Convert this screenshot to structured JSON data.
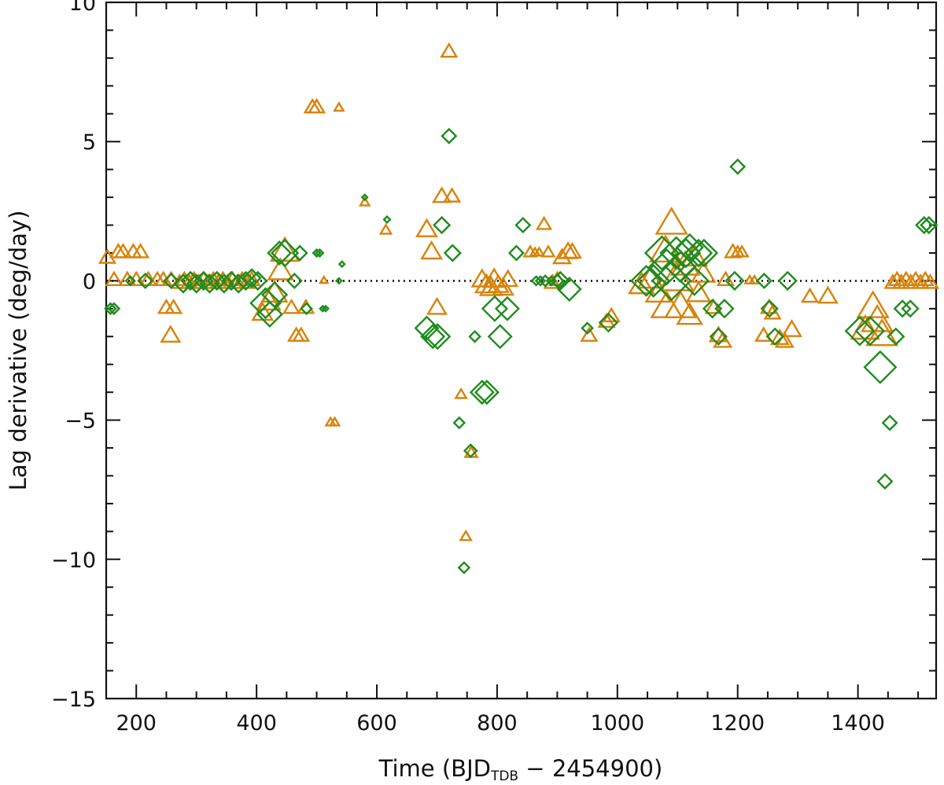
{
  "chart_data": {
    "type": "scatter",
    "title": "",
    "xlabel_parts": [
      "Time (BJD",
      "TDB",
      " − 2454900)"
    ],
    "ylabel": "Lag derivative (deg/day)",
    "xlim": [
      150,
      1530
    ],
    "ylim": [
      -15,
      10
    ],
    "x_ticks": [
      200,
      400,
      600,
      800,
      1000,
      1200,
      1400
    ],
    "x_tick_labels": [
      "200",
      "400",
      "600",
      "800",
      "1000",
      "1200",
      "1400"
    ],
    "y_ticks": [
      -15,
      -10,
      -5,
      0,
      5,
      10
    ],
    "y_tick_labels": [
      "−15",
      "−10",
      "−5",
      "0",
      "5",
      "10"
    ],
    "reference_line": 0,
    "series": [
      {
        "name": "triangles",
        "marker": "triangle",
        "color": "#D9820A",
        "points": [
          [
            152,
            0.8,
            1
          ],
          [
            170,
            1.0,
            1
          ],
          [
            178,
            1.0,
            1
          ],
          [
            195,
            1.0,
            1
          ],
          [
            207,
            1.0,
            1
          ],
          [
            163,
            0.0,
            1
          ],
          [
            185,
            0.0,
            1
          ],
          [
            200,
            0.0,
            1
          ],
          [
            220,
            0.0,
            1
          ],
          [
            235,
            0.0,
            1
          ],
          [
            245,
            0.0,
            1
          ],
          [
            258,
            0.0,
            1
          ],
          [
            250,
            -1.0,
            1
          ],
          [
            262,
            -1.0,
            1
          ],
          [
            257,
            -2.0,
            1.2
          ],
          [
            272,
            -0.1,
            1
          ],
          [
            280,
            0.0,
            1
          ],
          [
            288,
            -0.1,
            1
          ],
          [
            296,
            0.0,
            1
          ],
          [
            304,
            -0.1,
            1
          ],
          [
            312,
            0.0,
            1
          ],
          [
            320,
            -0.1,
            1
          ],
          [
            328,
            0.0,
            1
          ],
          [
            336,
            -0.1,
            1
          ],
          [
            344,
            0.0,
            1
          ],
          [
            352,
            -0.1,
            1
          ],
          [
            360,
            0.0,
            1
          ],
          [
            368,
            -0.1,
            1
          ],
          [
            376,
            0.0,
            1
          ],
          [
            384,
            -0.1,
            1
          ],
          [
            392,
            0.0,
            1
          ],
          [
            410,
            -1.2,
            1.3
          ],
          [
            420,
            -0.8,
            1.5
          ],
          [
            430,
            -0.5,
            1.6
          ],
          [
            440,
            0.3,
            1.6
          ],
          [
            447,
            1.0,
            1.8
          ],
          [
            458,
            -1.0,
            1
          ],
          [
            466,
            -2.0,
            1
          ],
          [
            474,
            -2.0,
            1
          ],
          [
            482,
            -1.0,
            1
          ],
          [
            493,
            6.2,
            1
          ],
          [
            500,
            6.2,
            1
          ],
          [
            537,
            6.2,
            0.6
          ],
          [
            512,
            0.0,
            0.5
          ],
          [
            523,
            -5.1,
            0.6
          ],
          [
            530,
            -5.1,
            0.6
          ],
          [
            580,
            2.8,
            0.6
          ],
          [
            615,
            1.8,
            0.7
          ],
          [
            683,
            1.8,
            1.3
          ],
          [
            691,
            1.0,
            1.3
          ],
          [
            700,
            -1.0,
            1.2
          ],
          [
            708,
            3.0,
            1.1
          ],
          [
            725,
            3.0,
            1
          ],
          [
            720,
            8.2,
            1
          ],
          [
            740,
            -4.1,
            0.7
          ],
          [
            748,
            -9.2,
            0.7
          ],
          [
            757,
            -6.2,
            0.8
          ],
          [
            775,
            0.0,
            1.3
          ],
          [
            782,
            -0.2,
            1.4
          ],
          [
            790,
            -0.3,
            1.4
          ],
          [
            795,
            0.0,
            1.4
          ],
          [
            802,
            -0.2,
            1.3
          ],
          [
            810,
            -0.3,
            1.3
          ],
          [
            818,
            0.0,
            1.2
          ],
          [
            855,
            1.0,
            0.8
          ],
          [
            863,
            1.0,
            0.6
          ],
          [
            870,
            1.0,
            0.6
          ],
          [
            878,
            2.0,
            0.9
          ],
          [
            885,
            1.0,
            0.8
          ],
          [
            892,
            -0.1,
            1
          ],
          [
            900,
            0.0,
            1
          ],
          [
            908,
            0.8,
            1.1
          ],
          [
            918,
            1.0,
            1.2
          ],
          [
            925,
            1.0,
            1.1
          ],
          [
            953,
            -2.0,
            1
          ],
          [
            982,
            -1.5,
            1
          ],
          [
            990,
            -1.3,
            1
          ],
          [
            1040,
            -0.2,
            1.6
          ],
          [
            1055,
            0.0,
            1.6
          ],
          [
            1068,
            -0.5,
            1.6
          ],
          [
            1080,
            1.0,
            2.0
          ],
          [
            1082,
            -1.0,
            2.0
          ],
          [
            1090,
            2.0,
            2.0
          ],
          [
            1098,
            0.0,
            2.2
          ],
          [
            1105,
            -1.0,
            2.0
          ],
          [
            1113,
            0.5,
            1.8
          ],
          [
            1120,
            -1.3,
            1.6
          ],
          [
            1128,
            0.8,
            1.6
          ],
          [
            1135,
            -0.5,
            1.5
          ],
          [
            1143,
            0.2,
            1.5
          ],
          [
            1160,
            -1.0,
            1
          ],
          [
            1168,
            -2.0,
            1.1
          ],
          [
            1175,
            -2.2,
            1.1
          ],
          [
            1180,
            0.0,
            1
          ],
          [
            1192,
            1.0,
            1
          ],
          [
            1200,
            1.0,
            0.8
          ],
          [
            1207,
            1.0,
            0.8
          ],
          [
            1220,
            0.0,
            0.6
          ],
          [
            1228,
            0.0,
            0.6
          ],
          [
            1243,
            -2.0,
            1
          ],
          [
            1252,
            -1.0,
            1
          ],
          [
            1258,
            -1.2,
            1
          ],
          [
            1270,
            -2.1,
            1.1
          ],
          [
            1278,
            -2.2,
            1.1
          ],
          [
            1290,
            -1.8,
            1.2
          ],
          [
            1320,
            -0.6,
            1
          ],
          [
            1350,
            -0.6,
            1.2
          ],
          [
            1412,
            -1.8,
            1.8
          ],
          [
            1425,
            -1.0,
            2.0
          ],
          [
            1432,
            -1.5,
            2.0
          ],
          [
            1440,
            -2.0,
            2.0
          ],
          [
            1458,
            -0.1,
            1
          ],
          [
            1465,
            0.0,
            1
          ],
          [
            1472,
            -0.1,
            1
          ],
          [
            1480,
            0.0,
            1
          ],
          [
            1488,
            -0.1,
            1
          ],
          [
            1496,
            0.0,
            1
          ],
          [
            1504,
            -0.1,
            1
          ],
          [
            1512,
            0.0,
            1
          ],
          [
            1520,
            -0.1,
            1
          ]
        ]
      },
      {
        "name": "diamonds",
        "marker": "diamond",
        "color": "#1E8C1E",
        "points": [
          [
            157,
            -1.0,
            0.6
          ],
          [
            163,
            -1.0,
            0.6
          ],
          [
            190,
            0.0,
            0.5
          ],
          [
            215,
            0.0,
            0.8
          ],
          [
            258,
            0.0,
            0.8
          ],
          [
            278,
            -0.1,
            1
          ],
          [
            290,
            0.0,
            1
          ],
          [
            300,
            -0.1,
            1
          ],
          [
            312,
            0.0,
            1
          ],
          [
            322,
            -0.1,
            1
          ],
          [
            334,
            0.0,
            1
          ],
          [
            346,
            -0.1,
            1
          ],
          [
            358,
            0.0,
            1
          ],
          [
            370,
            -0.1,
            1
          ],
          [
            382,
            0.0,
            1
          ],
          [
            392,
            0.1,
            1
          ],
          [
            402,
            0.0,
            1
          ],
          [
            415,
            -0.8,
            1.7
          ],
          [
            422,
            -1.2,
            1.4
          ],
          [
            430,
            -0.5,
            1.4
          ],
          [
            438,
            1.0,
            1.3
          ],
          [
            447,
            1.0,
            1.5
          ],
          [
            463,
            0.0,
            0.8
          ],
          [
            472,
            1.0,
            0.8
          ],
          [
            483,
            -1.0,
            0.6
          ],
          [
            500,
            1.0,
            0.4
          ],
          [
            505,
            1.0,
            0.4
          ],
          [
            510,
            -1.0,
            0.3
          ],
          [
            515,
            -1.0,
            0.3
          ],
          [
            542,
            0.6,
            0.3
          ],
          [
            580,
            3.0,
            0.3
          ],
          [
            617,
            2.2,
            0.35
          ],
          [
            537,
            0.0,
            0.3
          ],
          [
            683,
            -1.7,
            1.3
          ],
          [
            693,
            -2.0,
            1.3
          ],
          [
            701,
            -2.0,
            1.4
          ],
          [
            708,
            2.0,
            0.9
          ],
          [
            720,
            5.2,
            0.8
          ],
          [
            726,
            1.0,
            0.9
          ],
          [
            737,
            -5.1,
            0.6
          ],
          [
            745,
            -10.3,
            0.6
          ],
          [
            756,
            -6.1,
            0.7
          ],
          [
            763,
            -2.0,
            0.6
          ],
          [
            775,
            -4.0,
            1.3
          ],
          [
            783,
            -4.0,
            1.3
          ],
          [
            796,
            -1.0,
            1.4
          ],
          [
            805,
            -2.0,
            1.3
          ],
          [
            817,
            -1.0,
            1.3
          ],
          [
            832,
            1.0,
            0.8
          ],
          [
            843,
            2.0,
            0.8
          ],
          [
            865,
            0.0,
            0.5
          ],
          [
            872,
            0.0,
            0.5
          ],
          [
            880,
            0.0,
            0.6
          ],
          [
            890,
            0.0,
            0.5
          ],
          [
            900,
            0.0,
            0.7
          ],
          [
            905,
            0.0,
            1
          ],
          [
            920,
            -0.3,
            1.3
          ],
          [
            950,
            -1.7,
            0.6
          ],
          [
            985,
            -1.5,
            1
          ],
          [
            1048,
            0.0,
            1.7
          ],
          [
            1060,
            0.0,
            1.8
          ],
          [
            1074,
            1.0,
            1.9
          ],
          [
            1082,
            0.5,
            2.0
          ],
          [
            1090,
            0.0,
            2.2
          ],
          [
            1098,
            1.0,
            1.8
          ],
          [
            1105,
            0.5,
            1.7
          ],
          [
            1114,
            1.0,
            1.6
          ],
          [
            1120,
            1.2,
            1.5
          ],
          [
            1128,
            0.0,
            1.6
          ],
          [
            1135,
            1.0,
            1.5
          ],
          [
            1144,
            1.0,
            1.5
          ],
          [
            1158,
            -1.0,
            1
          ],
          [
            1168,
            -2.0,
            0.9
          ],
          [
            1178,
            -1.0,
            1
          ],
          [
            1195,
            0.0,
            1
          ],
          [
            1200,
            4.1,
            0.8
          ],
          [
            1244,
            0.0,
            0.8
          ],
          [
            1253,
            -1.0,
            0.9
          ],
          [
            1262,
            -2.0,
            0.9
          ],
          [
            1283,
            0.0,
            1
          ],
          [
            1403,
            -1.8,
            1.6
          ],
          [
            1420,
            -1.8,
            1.6
          ],
          [
            1437,
            -3.1,
            1.8
          ],
          [
            1453,
            -5.1,
            0.8
          ],
          [
            1445,
            -7.2,
            0.8
          ],
          [
            1463,
            -2.0,
            0.9
          ],
          [
            1474,
            -1.0,
            0.9
          ],
          [
            1487,
            -1.0,
            0.9
          ],
          [
            1510,
            2.0,
            0.9
          ],
          [
            1518,
            2.0,
            0.9
          ]
        ]
      }
    ]
  }
}
